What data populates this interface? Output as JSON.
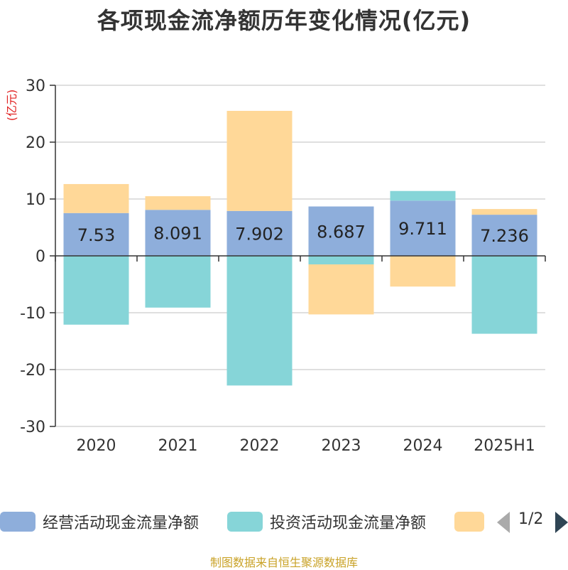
{
  "title": "各项现金流净额历年变化情况(亿元)",
  "y_unit": "(亿元)",
  "source": "制图数据来自恒生聚源数据库",
  "colors": {
    "operating": "#8eaedb",
    "investing": "#86d5d8",
    "financing": "#ffd898",
    "axis": "#333333",
    "grid": "#cccccc",
    "unit": "#e02020"
  },
  "legend": {
    "items": [
      {
        "label": "经营活动现金流量净额",
        "color": "#8eaedb"
      },
      {
        "label": "投资活动现金流量净额",
        "color": "#86d5d8"
      },
      {
        "label": "",
        "color": "#ffd898"
      }
    ],
    "pager": "1/2",
    "prev_icon": "triangle-left-icon",
    "next_icon": "triangle-right-icon"
  },
  "chart_data": {
    "type": "bar",
    "stacked": true,
    "categories": [
      "2020",
      "2021",
      "2022",
      "2023",
      "2024",
      "2025H1"
    ],
    "ylim": [
      -30,
      30
    ],
    "yticks": [
      30,
      20,
      10,
      0,
      -10,
      -20,
      -30
    ],
    "grid": true,
    "series": [
      {
        "name": "经营活动现金流量净额",
        "key": "operating",
        "values": [
          7.53,
          8.091,
          7.902,
          8.687,
          9.711,
          7.236
        ]
      },
      {
        "name": "投资活动现金流量净额",
        "key": "investing",
        "values": [
          -12.1,
          -9.1,
          -22.8,
          -1.5,
          1.7,
          -13.7
        ]
      },
      {
        "name": "",
        "key": "financing",
        "values": [
          5.1,
          2.4,
          17.6,
          -8.8,
          -5.4,
          1.0
        ]
      }
    ],
    "data_labels": [
      "7.53",
      "8.091",
      "7.902",
      "8.687",
      "9.711",
      "7.236"
    ]
  }
}
